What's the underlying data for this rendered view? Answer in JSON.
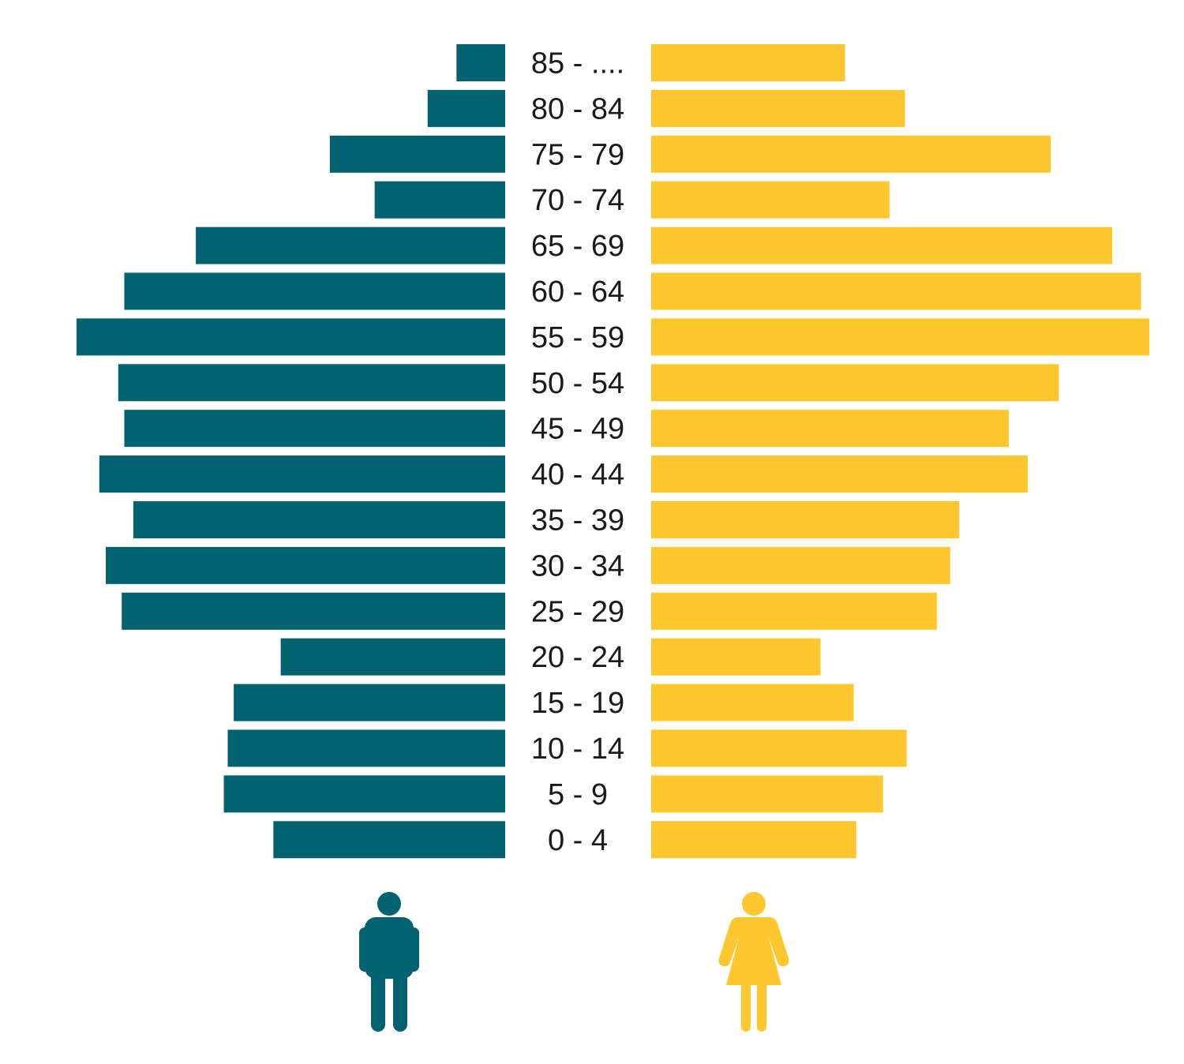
{
  "chart_data": {
    "type": "bar",
    "orientation": "horizontal",
    "layout": "population-pyramid",
    "title": "",
    "xlabel": "",
    "ylabel": "",
    "grid": false,
    "legend": "icons-bottom",
    "categories": [
      "85 - ....",
      "80 - 84",
      "75 - 79",
      "70 - 74",
      "65 - 69",
      "60 - 64",
      "55 - 59",
      "50 - 54",
      "45 - 49",
      "40 - 44",
      "35 - 39",
      "30 - 34",
      "25 - 29",
      "20 - 24",
      "15 - 19",
      "10 - 14",
      "5 - 9",
      "0 - 4"
    ],
    "series": [
      {
        "side": "left",
        "icon": "male-figure-icon",
        "color": "#03626f",
        "values": [
          11.3,
          18.0,
          40.7,
          30.3,
          71.8,
          88.4,
          99.5,
          89.8,
          88.4,
          94.2,
          86.3,
          92.7,
          89.0,
          52.1,
          63.0,
          64.4,
          65.3,
          53.8
        ]
      },
      {
        "side": "right",
        "icon": "female-figure-icon",
        "color": "#fec72e",
        "values": [
          45.0,
          58.9,
          92.7,
          55.3,
          107.0,
          113.7,
          115.6,
          94.6,
          83.0,
          87.4,
          71.5,
          69.4,
          66.3,
          39.3,
          47.0,
          59.3,
          53.8,
          47.6
        ]
      }
    ],
    "xlim": [
      0,
      120
    ]
  }
}
